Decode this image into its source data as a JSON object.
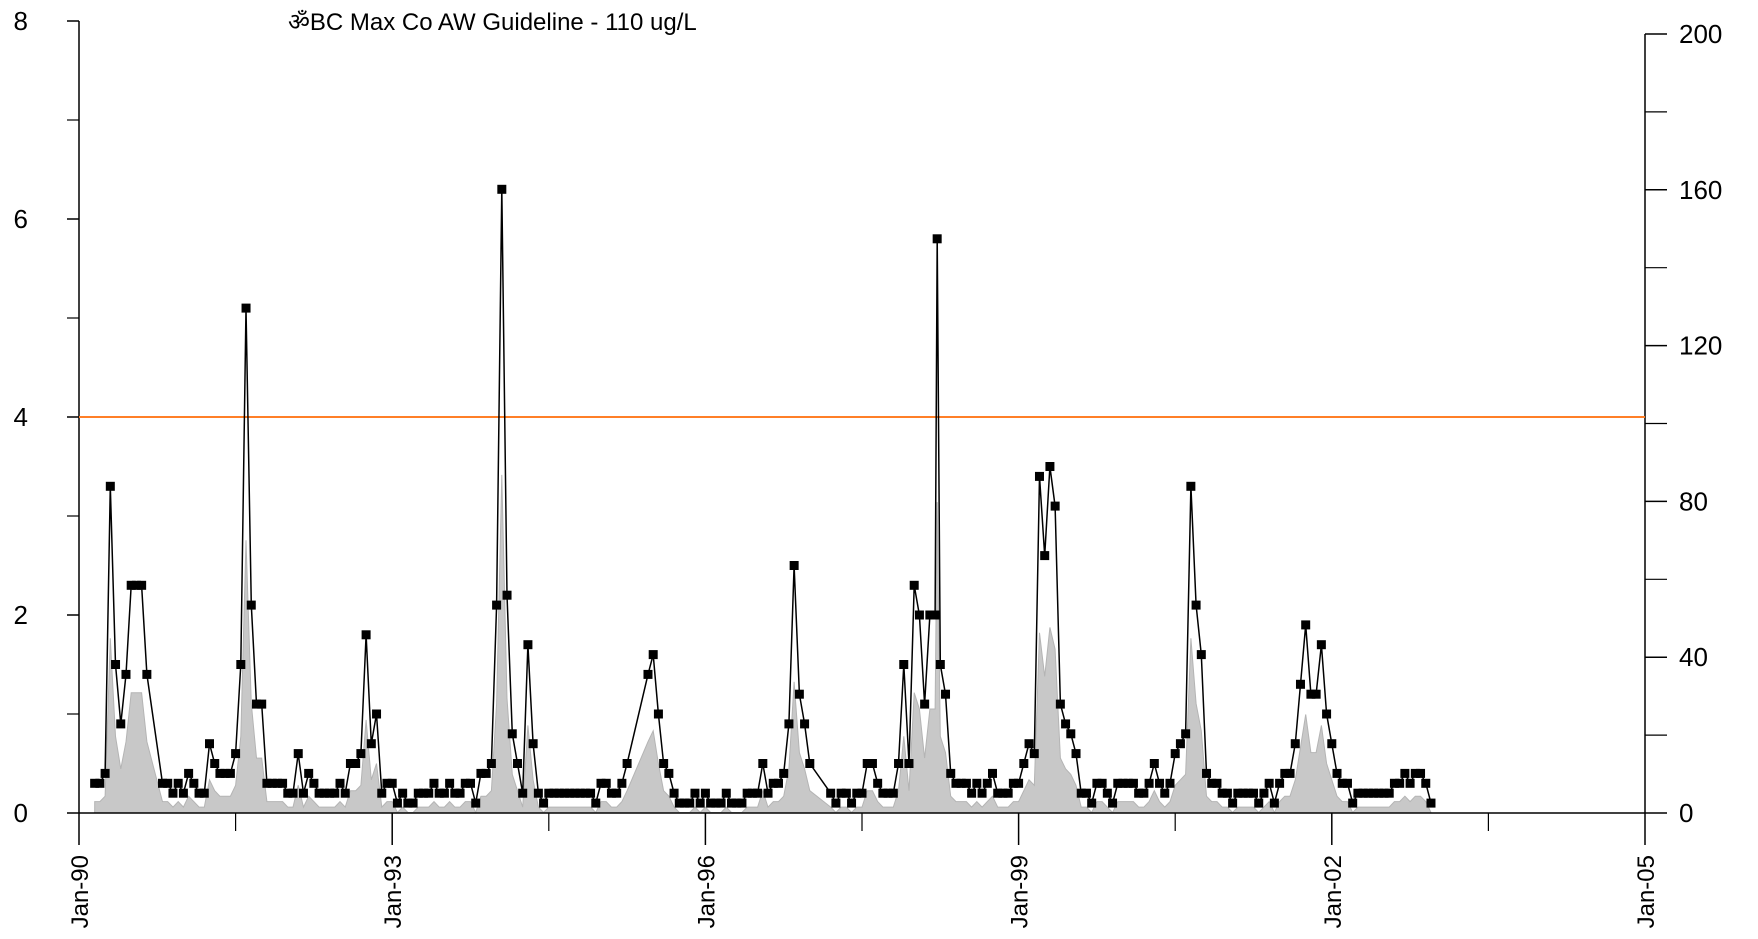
{
  "chart_data": {
    "type": "line",
    "title": "ॐBC Max Co AW Guideline - 110 ug/L",
    "x_ticks": [
      "Jan-90",
      "Jan-93",
      "Jan-96",
      "Jan-99",
      "Jan-02",
      "Jan-05"
    ],
    "x_range_years": [
      1990,
      2005
    ],
    "y_left": {
      "ticks": [
        "0",
        "2",
        "4",
        "6",
        "8"
      ],
      "range": [
        0,
        8
      ]
    },
    "y_right": {
      "ticks": [
        "0",
        "40",
        "80",
        "120",
        "160",
        "200"
      ],
      "range": [
        0,
        200
      ]
    },
    "guideline": {
      "value": 4,
      "color": "#ff7f27"
    },
    "grid": false,
    "legend": "none",
    "colors": {
      "series": "#000000",
      "area": "#c8c8c8",
      "area_edge": "#b4b4b4",
      "guideline": "#ff7f27"
    },
    "series": [
      {
        "type": "line-markers",
        "axis": "left",
        "points": [
          [
            1990.15,
            0.3
          ],
          [
            1990.2,
            0.3
          ],
          [
            1990.25,
            0.4
          ],
          [
            1990.3,
            3.3
          ],
          [
            1990.35,
            1.5
          ],
          [
            1990.4,
            0.9
          ],
          [
            1990.45,
            1.4
          ],
          [
            1990.5,
            2.3
          ],
          [
            1990.55,
            2.3
          ],
          [
            1990.6,
            2.3
          ],
          [
            1990.65,
            1.4
          ],
          [
            1990.8,
            0.3
          ],
          [
            1990.85,
            0.3
          ],
          [
            1990.9,
            0.2
          ],
          [
            1990.95,
            0.3
          ],
          [
            1991.0,
            0.2
          ],
          [
            1991.05,
            0.4
          ],
          [
            1991.1,
            0.3
          ],
          [
            1991.15,
            0.2
          ],
          [
            1991.2,
            0.2
          ],
          [
            1991.25,
            0.7
          ],
          [
            1991.3,
            0.5
          ],
          [
            1991.35,
            0.4
          ],
          [
            1991.4,
            0.4
          ],
          [
            1991.45,
            0.4
          ],
          [
            1991.5,
            0.6
          ],
          [
            1991.55,
            1.5
          ],
          [
            1991.6,
            5.1
          ],
          [
            1991.65,
            2.1
          ],
          [
            1991.7,
            1.1
          ],
          [
            1991.75,
            1.1
          ],
          [
            1991.8,
            0.3
          ],
          [
            1991.85,
            0.3
          ],
          [
            1991.9,
            0.3
          ],
          [
            1991.95,
            0.3
          ],
          [
            1992.0,
            0.2
          ],
          [
            1992.05,
            0.2
          ],
          [
            1992.1,
            0.6
          ],
          [
            1992.15,
            0.2
          ],
          [
            1992.2,
            0.4
          ],
          [
            1992.25,
            0.3
          ],
          [
            1992.3,
            0.2
          ],
          [
            1992.35,
            0.2
          ],
          [
            1992.4,
            0.2
          ],
          [
            1992.45,
            0.2
          ],
          [
            1992.5,
            0.3
          ],
          [
            1992.55,
            0.2
          ],
          [
            1992.6,
            0.5
          ],
          [
            1992.65,
            0.5
          ],
          [
            1992.7,
            0.6
          ],
          [
            1992.75,
            1.8
          ],
          [
            1992.8,
            0.7
          ],
          [
            1992.85,
            1.0
          ],
          [
            1992.9,
            0.2
          ],
          [
            1992.95,
            0.3
          ],
          [
            1993.0,
            0.3
          ],
          [
            1993.05,
            0.1
          ],
          [
            1993.1,
            0.2
          ],
          [
            1993.15,
            0.1
          ],
          [
            1993.2,
            0.1
          ],
          [
            1993.25,
            0.2
          ],
          [
            1993.3,
            0.2
          ],
          [
            1993.35,
            0.2
          ],
          [
            1993.4,
            0.3
          ],
          [
            1993.45,
            0.2
          ],
          [
            1993.5,
            0.2
          ],
          [
            1993.55,
            0.3
          ],
          [
            1993.6,
            0.2
          ],
          [
            1993.65,
            0.2
          ],
          [
            1993.7,
            0.3
          ],
          [
            1993.75,
            0.3
          ],
          [
            1993.8,
            0.1
          ],
          [
            1993.85,
            0.4
          ],
          [
            1993.9,
            0.4
          ],
          [
            1993.95,
            0.5
          ],
          [
            1994.0,
            2.1
          ],
          [
            1994.05,
            6.3
          ],
          [
            1994.1,
            2.2
          ],
          [
            1994.15,
            0.8
          ],
          [
            1994.2,
            0.5
          ],
          [
            1994.25,
            0.2
          ],
          [
            1994.3,
            1.7
          ],
          [
            1994.35,
            0.7
          ],
          [
            1994.4,
            0.2
          ],
          [
            1994.45,
            0.1
          ],
          [
            1994.5,
            0.2
          ],
          [
            1994.55,
            0.2
          ],
          [
            1994.6,
            0.2
          ],
          [
            1994.65,
            0.2
          ],
          [
            1994.7,
            0.2
          ],
          [
            1994.75,
            0.2
          ],
          [
            1994.8,
            0.2
          ],
          [
            1994.85,
            0.2
          ],
          [
            1994.9,
            0.2
          ],
          [
            1994.95,
            0.1
          ],
          [
            1995.0,
            0.3
          ],
          [
            1995.05,
            0.3
          ],
          [
            1995.1,
            0.2
          ],
          [
            1995.15,
            0.2
          ],
          [
            1995.2,
            0.3
          ],
          [
            1995.25,
            0.5
          ],
          [
            1995.45,
            1.4
          ],
          [
            1995.5,
            1.6
          ],
          [
            1995.55,
            1.0
          ],
          [
            1995.6,
            0.5
          ],
          [
            1995.65,
            0.4
          ],
          [
            1995.7,
            0.2
          ],
          [
            1995.75,
            0.1
          ],
          [
            1995.8,
            0.1
          ],
          [
            1995.85,
            0.1
          ],
          [
            1995.9,
            0.2
          ],
          [
            1995.95,
            0.1
          ],
          [
            1996.0,
            0.2
          ],
          [
            1996.05,
            0.1
          ],
          [
            1996.1,
            0.1
          ],
          [
            1996.15,
            0.1
          ],
          [
            1996.2,
            0.2
          ],
          [
            1996.25,
            0.1
          ],
          [
            1996.3,
            0.1
          ],
          [
            1996.35,
            0.1
          ],
          [
            1996.4,
            0.2
          ],
          [
            1996.45,
            0.2
          ],
          [
            1996.5,
            0.2
          ],
          [
            1996.55,
            0.5
          ],
          [
            1996.6,
            0.2
          ],
          [
            1996.65,
            0.3
          ],
          [
            1996.7,
            0.3
          ],
          [
            1996.75,
            0.4
          ],
          [
            1996.8,
            0.9
          ],
          [
            1996.85,
            2.5
          ],
          [
            1996.9,
            1.2
          ],
          [
            1996.95,
            0.9
          ],
          [
            1997.0,
            0.5
          ],
          [
            1997.2,
            0.2
          ],
          [
            1997.25,
            0.1
          ],
          [
            1997.3,
            0.2
          ],
          [
            1997.35,
            0.2
          ],
          [
            1997.4,
            0.1
          ],
          [
            1997.45,
            0.2
          ],
          [
            1997.5,
            0.2
          ],
          [
            1997.55,
            0.5
          ],
          [
            1997.6,
            0.5
          ],
          [
            1997.65,
            0.3
          ],
          [
            1997.7,
            0.2
          ],
          [
            1997.75,
            0.2
          ],
          [
            1997.8,
            0.2
          ],
          [
            1997.85,
            0.5
          ],
          [
            1997.9,
            1.5
          ],
          [
            1997.95,
            0.5
          ],
          [
            1998.0,
            2.3
          ],
          [
            1998.05,
            2.0
          ],
          [
            1998.1,
            1.1
          ],
          [
            1998.15,
            2.0
          ],
          [
            1998.2,
            2.0
          ],
          [
            1998.22,
            5.8
          ],
          [
            1998.25,
            1.5
          ],
          [
            1998.3,
            1.2
          ],
          [
            1998.35,
            0.4
          ],
          [
            1998.4,
            0.3
          ],
          [
            1998.45,
            0.3
          ],
          [
            1998.5,
            0.3
          ],
          [
            1998.55,
            0.2
          ],
          [
            1998.6,
            0.3
          ],
          [
            1998.65,
            0.2
          ],
          [
            1998.7,
            0.3
          ],
          [
            1998.75,
            0.4
          ],
          [
            1998.8,
            0.2
          ],
          [
            1998.85,
            0.2
          ],
          [
            1998.9,
            0.2
          ],
          [
            1998.95,
            0.3
          ],
          [
            1999.0,
            0.3
          ],
          [
            1999.05,
            0.5
          ],
          [
            1999.1,
            0.7
          ],
          [
            1999.15,
            0.6
          ],
          [
            1999.2,
            3.4
          ],
          [
            1999.25,
            2.6
          ],
          [
            1999.3,
            3.5
          ],
          [
            1999.35,
            3.1
          ],
          [
            1999.4,
            1.1
          ],
          [
            1999.45,
            0.9
          ],
          [
            1999.5,
            0.8
          ],
          [
            1999.55,
            0.6
          ],
          [
            1999.6,
            0.2
          ],
          [
            1999.65,
            0.2
          ],
          [
            1999.7,
            0.1
          ],
          [
            1999.75,
            0.3
          ],
          [
            1999.8,
            0.3
          ],
          [
            1999.85,
            0.2
          ],
          [
            1999.9,
            0.1
          ],
          [
            1999.95,
            0.3
          ],
          [
            2000.0,
            0.3
          ],
          [
            2000.05,
            0.3
          ],
          [
            2000.1,
            0.3
          ],
          [
            2000.15,
            0.2
          ],
          [
            2000.2,
            0.2
          ],
          [
            2000.25,
            0.3
          ],
          [
            2000.3,
            0.5
          ],
          [
            2000.35,
            0.3
          ],
          [
            2000.4,
            0.2
          ],
          [
            2000.45,
            0.3
          ],
          [
            2000.5,
            0.6
          ],
          [
            2000.55,
            0.7
          ],
          [
            2000.6,
            0.8
          ],
          [
            2000.65,
            3.3
          ],
          [
            2000.7,
            2.1
          ],
          [
            2000.75,
            1.6
          ],
          [
            2000.8,
            0.4
          ],
          [
            2000.85,
            0.3
          ],
          [
            2000.9,
            0.3
          ],
          [
            2000.95,
            0.2
          ],
          [
            2001.0,
            0.2
          ],
          [
            2001.05,
            0.1
          ],
          [
            2001.1,
            0.2
          ],
          [
            2001.15,
            0.2
          ],
          [
            2001.2,
            0.2
          ],
          [
            2001.25,
            0.2
          ],
          [
            2001.3,
            0.1
          ],
          [
            2001.35,
            0.2
          ],
          [
            2001.4,
            0.3
          ],
          [
            2001.45,
            0.1
          ],
          [
            2001.5,
            0.3
          ],
          [
            2001.55,
            0.4
          ],
          [
            2001.6,
            0.4
          ],
          [
            2001.65,
            0.7
          ],
          [
            2001.7,
            1.3
          ],
          [
            2001.75,
            1.9
          ],
          [
            2001.8,
            1.2
          ],
          [
            2001.85,
            1.2
          ],
          [
            2001.9,
            1.7
          ],
          [
            2001.95,
            1.0
          ],
          [
            2002.0,
            0.7
          ],
          [
            2002.05,
            0.4
          ],
          [
            2002.1,
            0.3
          ],
          [
            2002.15,
            0.3
          ],
          [
            2002.2,
            0.1
          ],
          [
            2002.25,
            0.2
          ],
          [
            2002.3,
            0.2
          ],
          [
            2002.35,
            0.2
          ],
          [
            2002.4,
            0.2
          ],
          [
            2002.45,
            0.2
          ],
          [
            2002.5,
            0.2
          ],
          [
            2002.55,
            0.2
          ],
          [
            2002.6,
            0.3
          ],
          [
            2002.65,
            0.3
          ],
          [
            2002.7,
            0.4
          ],
          [
            2002.75,
            0.3
          ],
          [
            2002.8,
            0.4
          ],
          [
            2002.85,
            0.4
          ],
          [
            2002.9,
            0.3
          ],
          [
            2002.95,
            0.1
          ]
        ]
      }
    ]
  }
}
